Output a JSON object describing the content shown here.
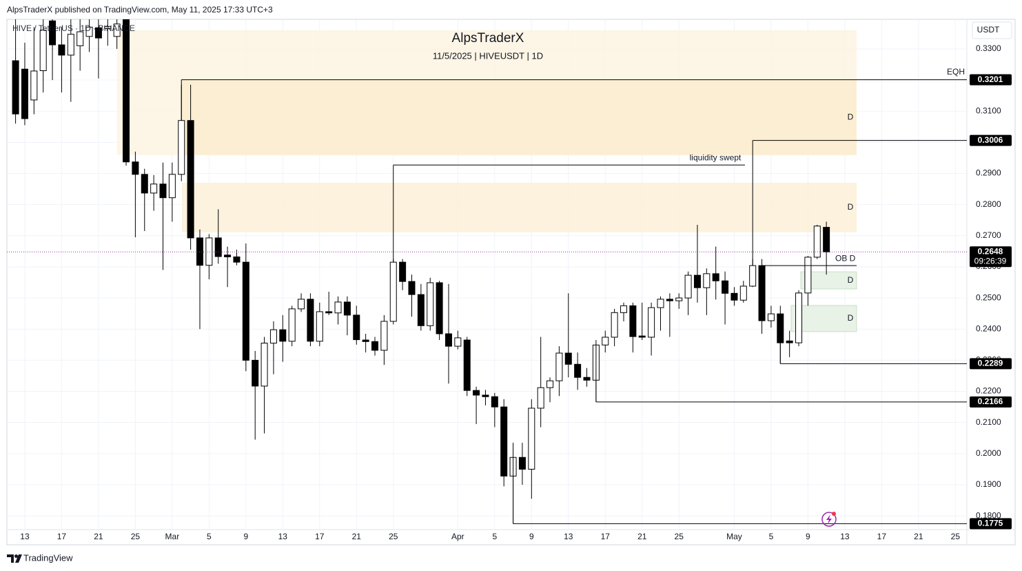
{
  "header": {
    "publisher": "AlpsTraderX published on TradingView.com, May 11, 2025 17:33 UTC+3",
    "symbol": "HIVE / TetherUS · 1D · BINANCE",
    "brand": "TradingView"
  },
  "chart_data": {
    "type": "candlestick",
    "title": "AlpsTraderX",
    "subtitle": "11/5/2025 | HIVEUSDT | 1D",
    "unit": "USDT",
    "categories": [
      null,
      "13",
      null,
      null,
      null,
      "17",
      null,
      null,
      null,
      "21",
      null,
      null,
      null,
      "25",
      null,
      null,
      null,
      "Mar",
      null,
      null,
      null,
      "5",
      null,
      null,
      null,
      "9",
      null,
      null,
      null,
      "13",
      null,
      null,
      null,
      "17",
      null,
      null,
      null,
      "21",
      null,
      null,
      null,
      "25",
      null,
      null,
      null,
      null,
      null,
      null,
      "Apr",
      null,
      null,
      null,
      "5",
      null,
      null,
      null,
      "9",
      null,
      null,
      null,
      "13",
      null,
      null,
      null,
      "17",
      null,
      null,
      null,
      "21",
      null,
      null,
      null,
      "25",
      null,
      null,
      null,
      null,
      null,
      "May",
      null,
      null,
      null,
      "5",
      null,
      null,
      null,
      "9",
      null,
      null,
      null,
      "13",
      null,
      null,
      null,
      "17",
      null,
      null,
      null,
      "21",
      null,
      null,
      null,
      "25"
    ],
    "open": [
      0.3262,
      0.3235,
      0.3136,
      0.323,
      0.339,
      0.3313,
      0.328,
      0.331,
      0.334,
      0.3368,
      0.3365,
      0.334,
      0.3395,
      0.2937,
      0.2897,
      0.2837,
      0.2866,
      0.2822,
      0.2897,
      0.307,
      0.2693,
      0.2605,
      0.2693,
      0.2638,
      0.2632,
      0.2615,
      0.23,
      0.2217,
      0.2355,
      0.2398,
      0.2361,
      0.2465,
      0.2496,
      0.2361,
      0.2456,
      0.2452,
      0.2487,
      0.2445,
      0.2365,
      0.236,
      0.2332,
      0.2425,
      0.2615,
      0.2553,
      0.2511,
      0.2411,
      0.2549,
      0.2385,
      0.2345,
      0.2365,
      0.2203,
      0.2188,
      0.2183,
      0.215,
      0.1928,
      0.1988,
      0.195,
      0.2146,
      0.2212,
      0.2234,
      0.2323,
      0.2287,
      0.2245,
      0.2236,
      0.2349,
      0.2374,
      0.2453,
      0.2475,
      0.2378,
      0.2374,
      0.2469,
      0.2496,
      0.2491,
      0.25,
      0.2573,
      0.2533,
      0.2578,
      0.2555,
      0.2515,
      0.2493,
      0.2538,
      0.2604,
      0.2427,
      0.2449,
      0.2362,
      0.2356,
      0.2516,
      0.2631,
      0.2727,
      null,
      null,
      null,
      null,
      null,
      null,
      null,
      null,
      null,
      null,
      null,
      null,
      null,
      null
    ],
    "high": [
      0.3395,
      0.332,
      0.337,
      0.3395,
      0.3395,
      0.337,
      0.3395,
      0.3395,
      0.3395,
      0.3395,
      0.3395,
      0.3395,
      0.3395,
      0.297,
      0.2915,
      0.2895,
      0.2935,
      0.2935,
      0.3185,
      0.3185,
      0.272,
      0.2705,
      0.2785,
      0.2665,
      0.2655,
      0.2675,
      0.233,
      0.2375,
      0.2425,
      0.2445,
      0.2475,
      0.2515,
      0.2515,
      0.2485,
      0.252,
      0.2505,
      0.2505,
      0.2475,
      0.2385,
      0.2375,
      0.2445,
      0.2625,
      0.2625,
      0.2575,
      0.2545,
      0.2565,
      0.2555,
      0.2545,
      0.2395,
      0.2375,
      0.2215,
      0.2205,
      0.2195,
      0.2175,
      0.2035,
      0.2035,
      0.2175,
      0.2375,
      0.2245,
      0.2345,
      0.2515,
      0.2325,
      0.2275,
      0.2365,
      0.2395,
      0.2465,
      0.2485,
      0.2485,
      0.2485,
      0.2485,
      0.2505,
      0.2515,
      0.2515,
      0.2585,
      0.2735,
      0.2595,
      0.2665,
      0.2585,
      0.2535,
      0.2555,
      0.2625,
      0.2625,
      0.2475,
      0.2475,
      0.2395,
      0.2525,
      0.2635,
      0.2735,
      0.2745,
      null,
      null,
      null,
      null,
      null,
      null,
      null,
      null,
      null,
      null,
      null,
      null,
      null,
      null
    ],
    "low": [
      0.306,
      0.3055,
      0.309,
      0.316,
      0.32,
      0.316,
      0.313,
      0.323,
      0.329,
      0.3205,
      0.331,
      0.33,
      0.2925,
      0.2695,
      0.2715,
      0.278,
      0.259,
      0.2745,
      0.2875,
      0.2655,
      0.24,
      0.256,
      0.261,
      0.2535,
      0.2605,
      0.2265,
      0.2045,
      0.2065,
      0.2255,
      0.2295,
      0.2345,
      0.2455,
      0.2345,
      0.2345,
      0.2445,
      0.2415,
      0.238,
      0.235,
      0.2325,
      0.2315,
      0.2285,
      0.2415,
      0.2525,
      0.244,
      0.2395,
      0.2395,
      0.2365,
      0.2225,
      0.2335,
      0.2185,
      0.2095,
      0.2155,
      0.2085,
      0.1895,
      0.1775,
      0.19,
      0.1855,
      0.2085,
      0.2165,
      0.2185,
      0.2245,
      0.2205,
      0.2215,
      0.2166,
      0.2325,
      0.2345,
      0.2425,
      0.2325,
      0.2365,
      0.2315,
      0.2395,
      0.2375,
      0.2465,
      0.2445,
      0.2485,
      0.2445,
      0.2495,
      0.2415,
      0.2475,
      0.2485,
      0.2535,
      0.2385,
      0.2405,
      0.2289,
      0.231,
      0.2345,
      0.2475,
      0.2625,
      0.2575,
      null,
      null,
      null,
      null,
      null,
      null,
      null,
      null,
      null,
      null,
      null,
      null,
      null,
      null
    ],
    "close": [
      0.3091,
      0.3076,
      0.3229,
      0.336,
      0.3313,
      0.328,
      0.3347,
      0.3355,
      0.337,
      0.3335,
      0.3372,
      0.338,
      0.2937,
      0.2897,
      0.2837,
      0.2866,
      0.2822,
      0.2897,
      0.307,
      0.2693,
      0.2605,
      0.2693,
      0.2633,
      0.2632,
      0.2615,
      0.23,
      0.2217,
      0.2355,
      0.2398,
      0.2361,
      0.2465,
      0.2496,
      0.2361,
      0.2456,
      0.2452,
      0.2487,
      0.2445,
      0.2366,
      0.236,
      0.2332,
      0.2425,
      0.2615,
      0.2553,
      0.2511,
      0.2411,
      0.2549,
      0.2385,
      0.2345,
      0.2372,
      0.2203,
      0.2188,
      0.2183,
      0.215,
      0.1928,
      0.1988,
      0.195,
      0.2146,
      0.2212,
      0.2234,
      0.2323,
      0.2287,
      0.2245,
      0.2236,
      0.2349,
      0.2374,
      0.2453,
      0.2475,
      0.2376,
      0.2374,
      0.2469,
      0.2496,
      0.2491,
      0.25,
      0.2573,
      0.2533,
      0.2578,
      0.2555,
      0.2515,
      0.2493,
      0.2538,
      0.2604,
      0.2427,
      0.2449,
      0.2356,
      0.2356,
      0.2516,
      0.2631,
      0.2731,
      0.2648,
      null,
      null,
      null,
      null,
      null,
      null,
      null,
      null,
      null,
      null,
      null,
      null,
      null,
      null
    ],
    "colors": {
      "up": "#ffffff",
      "down": "#000000",
      "outline": "#000000"
    },
    "ylim": [
      0.1756,
      0.3395
    ],
    "yticks": [
      {
        "value": 0.33,
        "label": "0.3300"
      },
      {
        "value": 0.32,
        "label": "0.3200"
      },
      {
        "value": 0.31,
        "label": "0.3100"
      },
      {
        "value": 0.3,
        "label": "0.3000"
      },
      {
        "value": 0.29,
        "label": "0.2900"
      },
      {
        "value": 0.28,
        "label": "0.2800"
      },
      {
        "value": 0.27,
        "label": "0.2700"
      },
      {
        "value": 0.26,
        "label": "0.2600"
      },
      {
        "value": 0.25,
        "label": "0.2500"
      },
      {
        "value": 0.24,
        "label": "0.2400"
      },
      {
        "value": 0.23,
        "label": "0.2300"
      },
      {
        "value": 0.22,
        "label": "0.2200"
      },
      {
        "value": 0.21,
        "label": "0.2100"
      },
      {
        "value": 0.2,
        "label": "0.2000"
      },
      {
        "value": 0.19,
        "label": "0.1900"
      },
      {
        "value": 0.18,
        "label": "0.1800"
      }
    ],
    "grid": true,
    "zones": [
      {
        "top": 0.336,
        "bottom": 0.2959,
        "color": "#fdf3e0"
      },
      {
        "top": 0.3201,
        "bottom": 0.2959,
        "label": "D",
        "color": "#fbeccf"
      },
      {
        "top": 0.287,
        "bottom": 0.2711,
        "label": "D",
        "color": "#fcf0d8"
      },
      {
        "top": 0.2584,
        "bottom": 0.2529,
        "label": "D",
        "color": "#e8f2e6"
      },
      {
        "top": 0.2476,
        "bottom": 0.2392,
        "label": "D",
        "color": "#e8f2e6"
      }
    ],
    "levels": [
      {
        "value": 0.3201,
        "label": "EQH"
      },
      {
        "value": 0.3006
      },
      {
        "value": 0.2289
      },
      {
        "value": 0.2166
      },
      {
        "value": 0.1775
      }
    ],
    "lines": [
      {
        "value": 0.2927,
        "label": "liquidity swept"
      },
      {
        "value": 0.2604,
        "label": "OB D"
      }
    ],
    "last": {
      "value": 0.2648,
      "countdown": "09:26:39",
      "color": "#9c27b0"
    }
  }
}
